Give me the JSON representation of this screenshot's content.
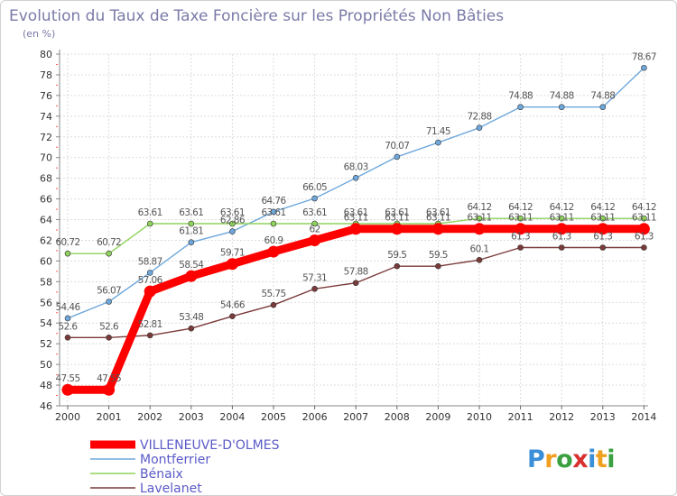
{
  "chart_data": {
    "type": "line",
    "title": "Evolution du Taux de Taxe Foncière sur les Propriétés Non Bâties",
    "subtitle": "(en %)",
    "x": [
      2000,
      2001,
      2002,
      2003,
      2004,
      2005,
      2006,
      2007,
      2008,
      2009,
      2010,
      2011,
      2012,
      2013,
      2014
    ],
    "ylim": [
      46,
      80
    ],
    "ytick_step": 2,
    "grid": true,
    "legend_position": "bottom-left",
    "series": [
      {
        "name": "VILLENEUVE-D'OLMES",
        "color": "#ff0000",
        "values": [
          47.55,
          47.55,
          57.06,
          58.54,
          59.71,
          60.9,
          62.0,
          63.11,
          63.11,
          63.11,
          63.11,
          63.11,
          63.11,
          63.11,
          63.11
        ],
        "labels": [
          "47.55",
          "47.55",
          "57.06",
          "58.54",
          "59.71",
          "60.9",
          "62",
          "63.11",
          "63.11",
          "63.11",
          "63.11",
          "63.11",
          "63.11",
          "63.11",
          "63.11"
        ]
      },
      {
        "name": "Montferrier",
        "color": "#6fa8dc",
        "values": [
          54.46,
          56.07,
          58.87,
          61.81,
          62.86,
          64.76,
          66.05,
          68.03,
          70.07,
          71.45,
          72.88,
          74.88,
          74.88,
          74.88,
          78.67
        ],
        "labels": [
          "54.46",
          "56.07",
          "58.87",
          "61.81",
          "62.86",
          "64.76",
          "66.05",
          "68.03",
          "70.07",
          "71.45",
          "72.88",
          "74.88",
          "74.88",
          "74.88",
          "78.67"
        ]
      },
      {
        "name": "Bénaix",
        "color": "#8fd35c",
        "values": [
          60.72,
          60.72,
          63.61,
          63.61,
          63.61,
          63.61,
          63.61,
          63.61,
          63.61,
          63.61,
          64.12,
          64.12,
          64.12,
          64.12,
          64.12
        ],
        "labels": [
          "60.72",
          "60.72",
          "63.61",
          "63.61",
          "63.61",
          "63.61",
          "63.61",
          "63.61",
          "63.61",
          "63.61",
          "64.12",
          "64.12",
          "64.12",
          "64.12",
          "64.12"
        ]
      },
      {
        "name": "Lavelanet",
        "color": "#7b3a3a",
        "values": [
          52.6,
          52.6,
          52.81,
          53.48,
          54.66,
          55.75,
          57.31,
          57.88,
          59.5,
          59.5,
          60.1,
          61.3,
          61.3,
          61.3,
          61.3
        ],
        "labels": [
          "52.6",
          "52.6",
          "52.81",
          "53.48",
          "54.66",
          "55.75",
          "57.31",
          "57.88",
          "59.5",
          "59.5",
          "60.1",
          "61.3",
          "61.3",
          "61.3",
          "61.3"
        ]
      }
    ]
  },
  "logo": {
    "letters": [
      "P",
      "r",
      "o",
      "x",
      "i",
      "t",
      "i"
    ],
    "colors": [
      "#3a8fd8",
      "#f0a020",
      "#3aa040",
      "#d83030",
      "#3a8fd8",
      "#f0a020",
      "#3aa040"
    ]
  }
}
